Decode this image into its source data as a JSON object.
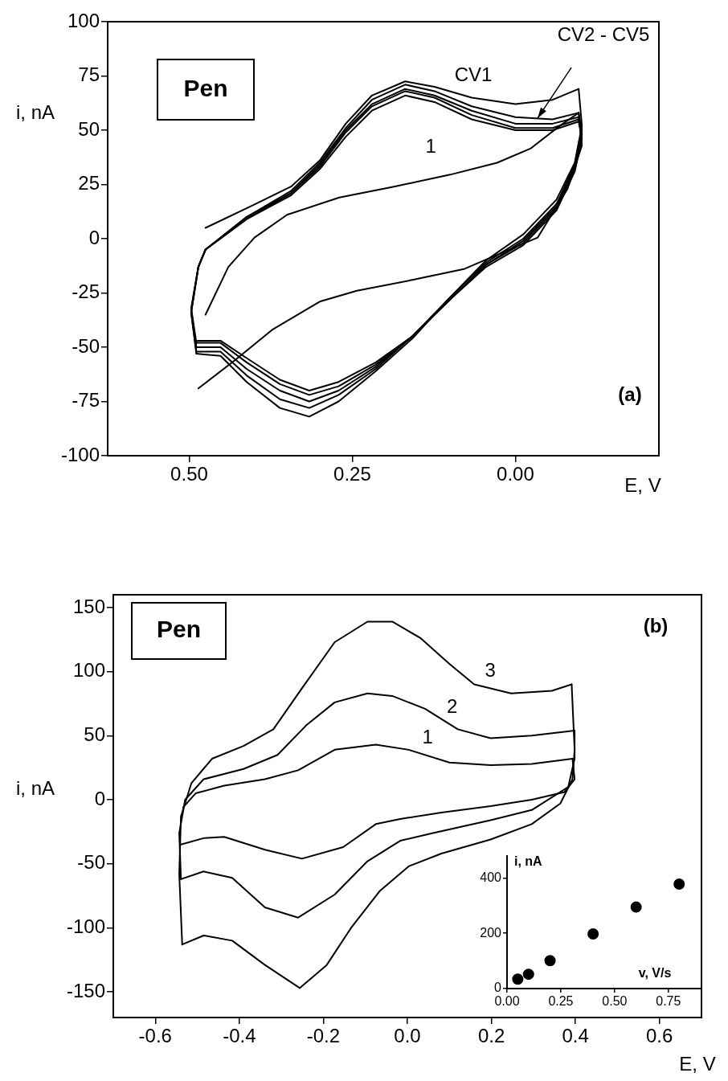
{
  "chart_data": [
    {
      "type": "line",
      "title": "Pen",
      "xlabel": "E, V",
      "ylabel": "i, nA",
      "xlim": [
        0.625,
        -0.22
      ],
      "xticks": [
        {
          "value": 0.5,
          "label": "0.50"
        },
        {
          "value": 0.25,
          "label": "0.25"
        },
        {
          "value": 0,
          "label": "0.00"
        }
      ],
      "ylim": [
        -100,
        100
      ],
      "yticks": [
        -100,
        -75,
        -50,
        -25,
        0,
        25,
        50,
        75,
        100
      ],
      "series": [
        {
          "name": "CV1",
          "color": "#000000",
          "x": [
            0.475,
            0.412,
            0.344,
            0.3,
            0.26,
            0.22,
            0.169,
            0.124,
            0.067,
            0.0,
            -0.057,
            -0.097
          ],
          "values": [
            5,
            14,
            24,
            36,
            53,
            66,
            72.5,
            70,
            65,
            62,
            64,
            69
          ]
        },
        {
          "color": "#000000",
          "x": [
            -0.097,
            -0.102,
            -0.091,
            -0.063,
            -0.012,
            0.045,
            0.1,
            0.158,
            0.214,
            0.271,
            0.316,
            0.361,
            0.412,
            0.452,
            0.489
          ],
          "values": [
            69,
            52,
            35,
            18,
            2,
            -10,
            -27,
            -46,
            -61,
            -75,
            -82,
            -78,
            -66,
            -54,
            -53
          ]
        },
        {
          "color": "#000000",
          "x": [
            0.489,
            0.497,
            0.486,
            0.475,
            0.412,
            0.344,
            0.3,
            0.26,
            0.22,
            0.169,
            0.124,
            0.067,
            0.0,
            -0.057,
            -0.097
          ],
          "values": [
            -53,
            -34,
            -13,
            -5,
            10,
            22,
            35,
            51,
            64,
            71,
            68,
            61,
            56,
            55,
            58
          ]
        },
        {
          "color": "#000000",
          "x": [
            -0.097,
            -0.102,
            -0.091,
            -0.063,
            -0.012,
            0.045,
            0.1,
            0.158,
            0.214,
            0.271,
            0.316,
            0.361,
            0.412,
            0.452,
            0.489
          ],
          "values": [
            58,
            50,
            34,
            16,
            0,
            -11,
            -27,
            -45,
            -60,
            -72,
            -78,
            -74,
            -63,
            -52,
            -52
          ]
        },
        {
          "color": "#000000",
          "x": [
            0.489,
            0.497,
            0.486,
            0.475,
            0.412,
            0.344,
            0.3,
            0.26,
            0.22,
            0.169,
            0.124,
            0.067,
            0.0,
            -0.057,
            -0.097
          ],
          "values": [
            -52,
            -34,
            -13,
            -5,
            10,
            21,
            34,
            50,
            62,
            69,
            66,
            59,
            53,
            53,
            56
          ]
        },
        {
          "color": "#000000",
          "x": [
            -0.097,
            -0.102,
            -0.091,
            -0.063,
            -0.012,
            0.045,
            0.1,
            0.158,
            0.214,
            0.271,
            0.316,
            0.361,
            0.412,
            0.452,
            0.489
          ],
          "values": [
            56,
            48,
            33,
            15,
            -1,
            -12,
            -28,
            -45,
            -59,
            -70,
            -75,
            -70,
            -60,
            -50,
            -50
          ]
        },
        {
          "color": "#000000",
          "x": [
            0.489,
            0.497,
            0.486,
            0.475,
            0.412,
            0.344,
            0.3,
            0.26,
            0.22,
            0.169,
            0.124,
            0.067,
            0.0,
            -0.057,
            -0.097
          ],
          "values": [
            -50,
            -33,
            -13,
            -5,
            9,
            21,
            33,
            49,
            61,
            68,
            65,
            57,
            51,
            51,
            55
          ]
        },
        {
          "color": "#000000",
          "x": [
            -0.097,
            -0.102,
            -0.091,
            -0.063,
            -0.012,
            0.045,
            0.1,
            0.158,
            0.214,
            0.271,
            0.316,
            0.361,
            0.412,
            0.452,
            0.489
          ],
          "values": [
            55,
            47,
            32,
            14,
            -2,
            -12,
            -28,
            -45,
            -58,
            -68,
            -72,
            -67,
            -57,
            -48,
            -48
          ]
        },
        {
          "color": "#000000",
          "x": [
            0.489,
            0.497,
            0.486,
            0.475,
            0.412,
            0.344,
            0.3,
            0.26,
            0.22,
            0.169,
            0.124,
            0.067,
            0.0,
            -0.057,
            -0.097
          ],
          "values": [
            -48,
            -32,
            -13,
            -5,
            9,
            20,
            32,
            47,
            59,
            66,
            63,
            55,
            50,
            50,
            54
          ]
        },
        {
          "color": "#000000",
          "x": [
            -0.097,
            -0.102,
            -0.091,
            -0.063,
            -0.012,
            0.045,
            0.1,
            0.158,
            0.214,
            0.271,
            0.316,
            0.361,
            0.412,
            0.452,
            0.489
          ],
          "values": [
            54,
            46,
            31,
            13,
            -3,
            -13,
            -28,
            -45,
            -57,
            -66,
            -70,
            -65,
            -55,
            -47,
            -47
          ]
        },
        {
          "name": "1",
          "color": "#000000",
          "x": [
            0.475,
            0.44,
            0.4,
            0.35,
            0.27,
            0.186,
            0.1,
            0.028,
            -0.023,
            -0.068,
            -0.097
          ],
          "values": [
            -35,
            -13,
            0.5,
            11,
            19,
            24,
            29.5,
            35,
            41.5,
            52,
            58
          ]
        },
        {
          "color": "#000000",
          "x": [
            -0.097,
            -0.102,
            -0.08,
            -0.034,
            0.017,
            0.079,
            0.158,
            0.243,
            0.3,
            0.373,
            0.43,
            0.486
          ],
          "values": [
            58,
            43,
            23,
            0.5,
            -6,
            -14,
            -19,
            -24,
            -29,
            -42,
            -56,
            -69
          ]
        }
      ],
      "annotations": [
        {
          "text": "CV2 - CV5",
          "x": -0.034,
          "y": 55.5
        },
        "(a)"
      ]
    },
    {
      "type": "line",
      "title": "Pen",
      "xlabel": "E, V",
      "ylabel": "i, nA",
      "xlim": [
        -0.7,
        0.7
      ],
      "xticks": [
        {
          "value": -0.6,
          "label": "-0.6"
        },
        {
          "value": -0.4,
          "label": "-0.4"
        },
        {
          "value": -0.2,
          "label": "-0.2"
        },
        {
          "value": 0,
          "label": "0.0"
        },
        {
          "value": 0.2,
          "label": "0.2"
        },
        {
          "value": 0.4,
          "label": "0.4"
        },
        {
          "value": 0.6,
          "label": "0.6"
        }
      ],
      "ylim": [
        -170,
        160
      ],
      "yticks": [
        -150,
        -100,
        -50,
        0,
        50,
        100,
        150
      ],
      "series": [
        {
          "name": "1",
          "color": "#000000",
          "x": [
            -0.534,
            -0.504,
            -0.436,
            -0.339,
            -0.26,
            -0.173,
            -0.075,
            0.003,
            0.1,
            0.198,
            0.296,
            0.393
          ],
          "values": [
            -6,
            5,
            11,
            16,
            23,
            39,
            43,
            39,
            29,
            27,
            28,
            32
          ]
        },
        {
          "color": "#000000",
          "x": [
            0.393,
            0.398,
            0.374,
            0.296,
            0.198,
            0.081,
            -0.017,
            -0.075,
            -0.153,
            -0.251,
            -0.339,
            -0.436,
            -0.485,
            -0.539
          ],
          "values": [
            32,
            16,
            6,
            0,
            -5,
            -10,
            -15,
            -19,
            -37,
            -46,
            -39,
            -29,
            -30,
            -35
          ]
        },
        {
          "name": "2",
          "color": "#000000",
          "x": [
            -0.539,
            -0.543,
            -0.529,
            -0.485,
            -0.39,
            -0.309,
            -0.241,
            -0.173,
            -0.095,
            -0.036,
            0.042,
            0.12,
            0.198,
            0.296,
            0.398
          ],
          "values": [
            -62,
            -26,
            0,
            16,
            24,
            35,
            58,
            76,
            83,
            81,
            71,
            55,
            48,
            50,
            54
          ]
        },
        {
          "color": "#000000",
          "x": [
            0.398,
            0.398,
            0.383,
            0.296,
            0.198,
            0.061,
            -0.017,
            -0.095,
            -0.173,
            -0.26,
            -0.339,
            -0.417,
            -0.485,
            -0.539
          ],
          "values": [
            54,
            32,
            10,
            -8,
            -16,
            -26,
            -32,
            -48,
            -74,
            -92,
            -84,
            -61,
            -56,
            -62
          ]
        },
        {
          "name": "3",
          "color": "#000000",
          "x": [
            -0.536,
            -0.543,
            -0.539,
            -0.514,
            -0.465,
            -0.39,
            -0.319,
            -0.251,
            -0.173,
            -0.095,
            -0.036,
            0.032,
            0.1,
            0.159,
            0.247,
            0.344,
            0.391
          ],
          "values": [
            -113,
            -58,
            -13,
            13,
            32,
            42,
            55,
            87,
            123,
            139,
            139,
            126,
            106,
            90,
            83,
            85,
            90
          ]
        },
        {
          "color": "#000000",
          "x": [
            0.391,
            0.398,
            0.393,
            0.364,
            0.296,
            0.198,
            0.081,
            0.003,
            -0.065,
            -0.134,
            -0.192,
            -0.256,
            -0.339,
            -0.417,
            -0.485,
            -0.536
          ],
          "values": [
            90,
            39,
            16,
            -3,
            -19,
            -31,
            -42,
            -52,
            -71,
            -100,
            -129,
            -147,
            -129,
            -110,
            -106,
            -113
          ]
        }
      ],
      "annotations": [
        "(b)"
      ]
    },
    {
      "type": "scatter",
      "xlabel": "v, V/s",
      "ylabel": "i, nA",
      "marker": "circle",
      "xlim": [
        0,
        0.9
      ],
      "xticks": [
        {
          "value": 0,
          "label": "0.00"
        },
        {
          "value": 0.25,
          "label": "0.25"
        },
        {
          "value": 0.5,
          "label": "0.50"
        },
        {
          "value": 0.75,
          "label": "0.75"
        }
      ],
      "ylim": [
        0,
        480
      ],
      "yticks": [
        0,
        200,
        400
      ],
      "x": [
        0.05,
        0.1,
        0.2,
        0.4,
        0.6,
        0.8
      ],
      "series": [
        {
          "color": "#000000",
          "values": [
            34,
            52,
            101,
            198,
            295,
            378
          ]
        }
      ]
    }
  ]
}
